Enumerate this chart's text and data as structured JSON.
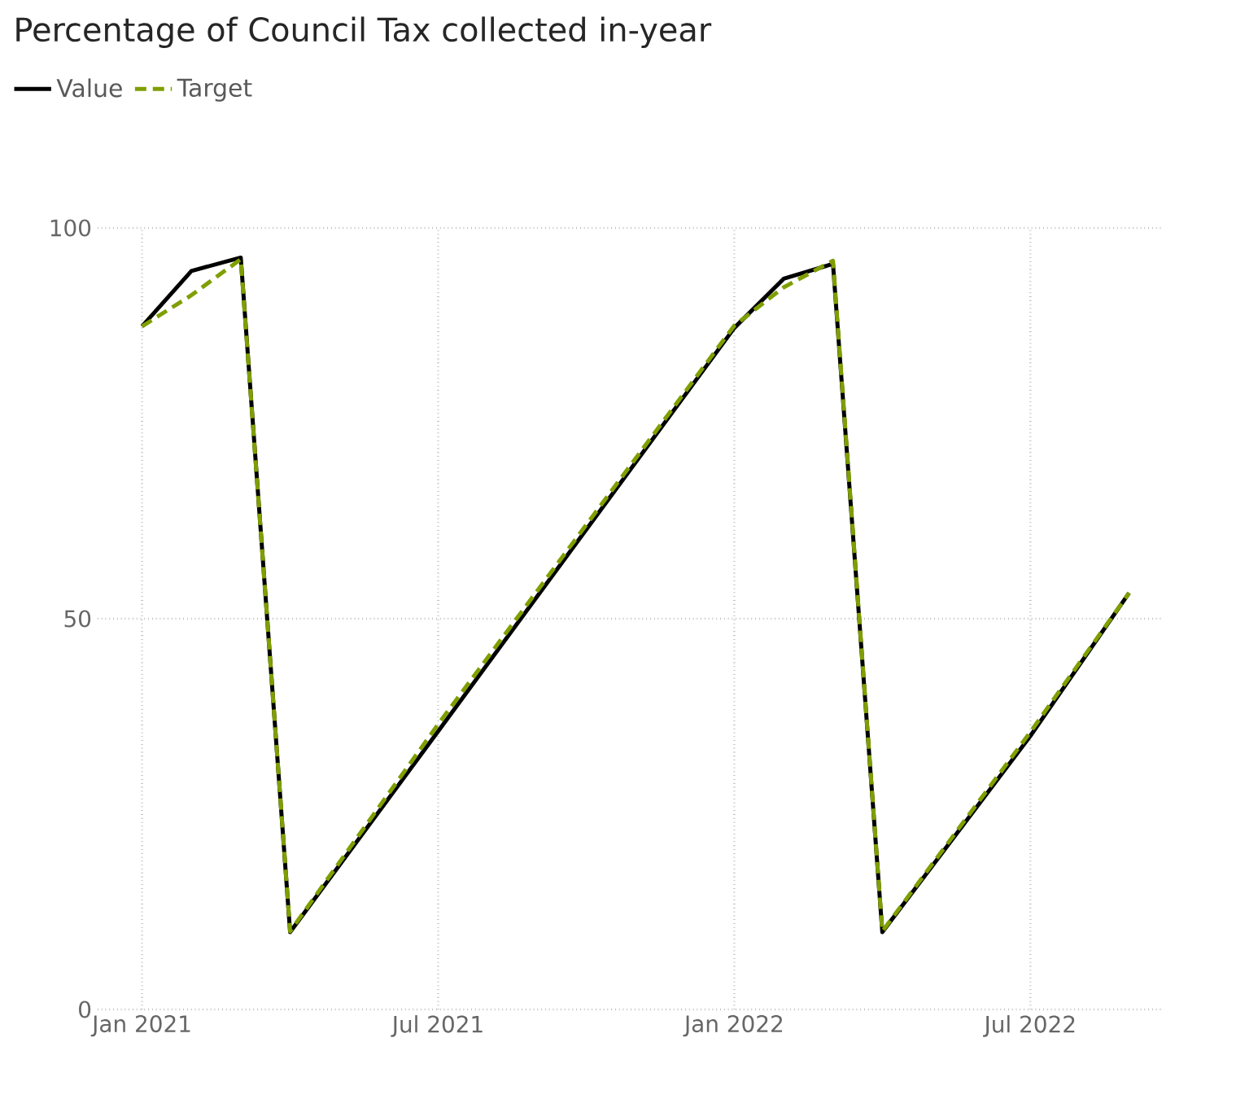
{
  "chart_data": {
    "type": "line",
    "title": "Percentage of Council Tax collected in-year",
    "x": [
      "2021-01",
      "2021-02",
      "2021-03",
      "2021-04",
      "2021-07",
      "2022-01",
      "2022-02",
      "2022-03",
      "2022-04",
      "2022-07",
      "2022-09"
    ],
    "series": [
      {
        "name": "Value",
        "color": "#000000",
        "line_style": "solid",
        "values": [
          87.4,
          94.5,
          96.2,
          9.9,
          35.6,
          87.2,
          93.5,
          95.4,
          9.9,
          35,
          53.3
        ]
      },
      {
        "name": "Target",
        "color": "#7f9f00",
        "line_style": "dashed",
        "values": [
          87.4,
          91.4,
          96,
          10,
          36.5,
          87.5,
          92.4,
          95.8,
          10,
          35.5,
          53.3
        ]
      }
    ],
    "xlim": [
      "2020-12-04",
      "2022-09-22"
    ],
    "xticks": [
      {
        "value": "2021-01",
        "label": "Jan 2021"
      },
      {
        "value": "2021-07",
        "label": "Jul 2021"
      },
      {
        "value": "2022-01",
        "label": "Jan 2022"
      },
      {
        "value": "2022-07",
        "label": "Jul 2022"
      }
    ],
    "ylim": [
      0,
      100
    ],
    "yticks": [
      0,
      50,
      100
    ],
    "grid": true,
    "legend": "top left",
    "marker": "none"
  }
}
